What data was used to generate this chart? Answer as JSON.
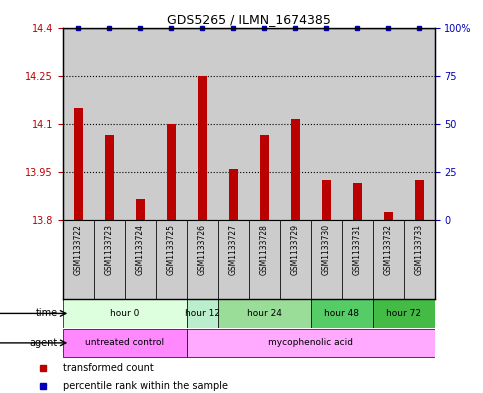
{
  "title": "GDS5265 / ILMN_1674385",
  "samples": [
    "GSM1133722",
    "GSM1133723",
    "GSM1133724",
    "GSM1133725",
    "GSM1133726",
    "GSM1133727",
    "GSM1133728",
    "GSM1133729",
    "GSM1133730",
    "GSM1133731",
    "GSM1133732",
    "GSM1133733"
  ],
  "bar_values": [
    14.15,
    14.065,
    13.865,
    14.1,
    14.25,
    13.96,
    14.065,
    14.115,
    13.925,
    13.915,
    13.825,
    13.925
  ],
  "bar_color": "#bb0000",
  "percentile_color": "#0000bb",
  "ylim_left": [
    13.8,
    14.4
  ],
  "ylim_right": [
    0,
    100
  ],
  "yticks_left": [
    13.8,
    13.95,
    14.1,
    14.25,
    14.4
  ],
  "yticks_right": [
    0,
    25,
    50,
    75,
    100
  ],
  "dotted_lines": [
    13.95,
    14.1,
    14.25
  ],
  "col_bg_color": "#cccccc",
  "time_groups": [
    {
      "label": "hour 0",
      "start": 0,
      "end": 4,
      "color": "#ddffdd"
    },
    {
      "label": "hour 12",
      "start": 4,
      "end": 5,
      "color": "#bbeecc"
    },
    {
      "label": "hour 24",
      "start": 5,
      "end": 8,
      "color": "#99dd99"
    },
    {
      "label": "hour 48",
      "start": 8,
      "end": 10,
      "color": "#55cc66"
    },
    {
      "label": "hour 72",
      "start": 10,
      "end": 12,
      "color": "#44bb44"
    }
  ],
  "agent_groups": [
    {
      "label": "untreated control",
      "start": 0,
      "end": 4,
      "color": "#ff88ff"
    },
    {
      "label": "mycophenolic acid",
      "start": 4,
      "end": 12,
      "color": "#ffaaff"
    }
  ],
  "legend_bar_label": "transformed count",
  "legend_pct_label": "percentile rank within the sample"
}
